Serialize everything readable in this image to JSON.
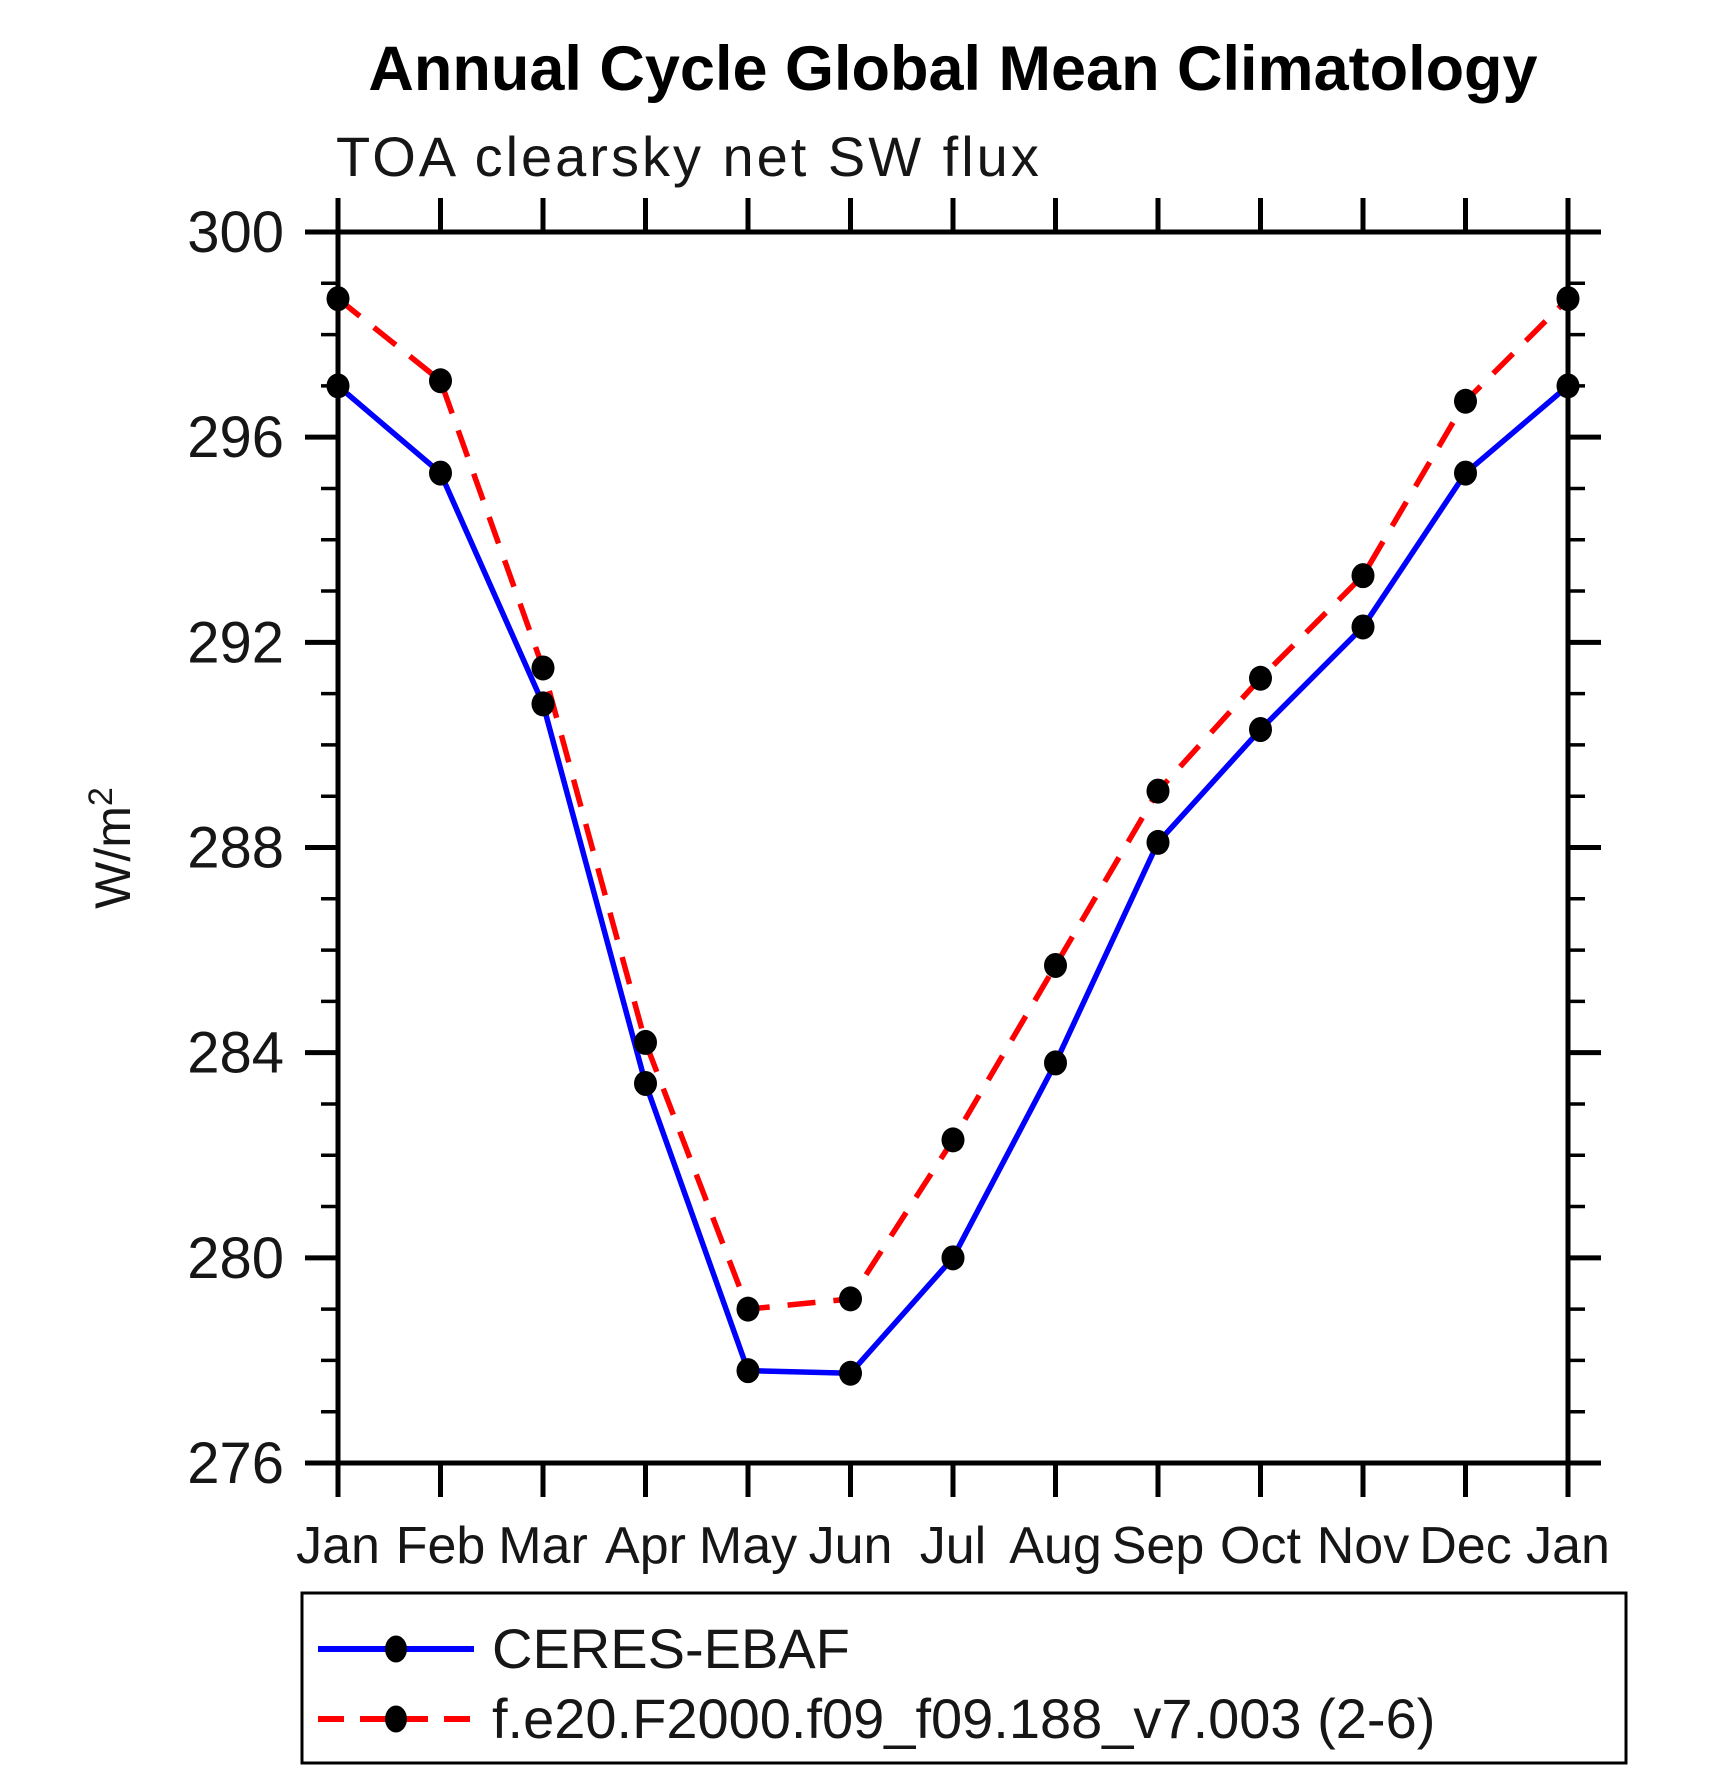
{
  "title": "Annual Cycle Global Mean Climatology",
  "subtitle": "TOA clearsky net SW flux",
  "y_axis": {
    "label_base": "W/m",
    "label_exp": "2"
  },
  "chart_data": {
    "type": "line",
    "categories": [
      "Jan",
      "Feb",
      "Mar",
      "Apr",
      "May",
      "Jun",
      "Jul",
      "Aug",
      "Sep",
      "Oct",
      "Nov",
      "Dec",
      "Jan"
    ],
    "series": [
      {
        "name": "CERES-EBAF",
        "color": "#0000ff",
        "line_style": "solid",
        "values": [
          297.0,
          295.3,
          290.8,
          283.4,
          277.8,
          277.75,
          280.0,
          283.8,
          288.1,
          290.3,
          292.3,
          295.3,
          297.0
        ]
      },
      {
        "name": "f.e20.F2000.f09_f09.188_v7.003 (2-6)",
        "color": "#ff0000",
        "line_style": "dashed",
        "values": [
          298.7,
          297.1,
          291.5,
          284.2,
          279.0,
          279.2,
          282.3,
          285.7,
          289.1,
          291.3,
          293.3,
          296.7,
          298.7
        ]
      }
    ],
    "title": "Annual Cycle Global Mean Climatology",
    "subtitle": "TOA clearsky net SW flux",
    "xlabel": "",
    "ylabel": "W/m²",
    "ylim": [
      276,
      300
    ],
    "y_major_step": 4,
    "y_minor_step": 1,
    "marker": "filled-circle",
    "marker_color": "#000000",
    "grid": false,
    "legend_position": "bottom-box"
  }
}
